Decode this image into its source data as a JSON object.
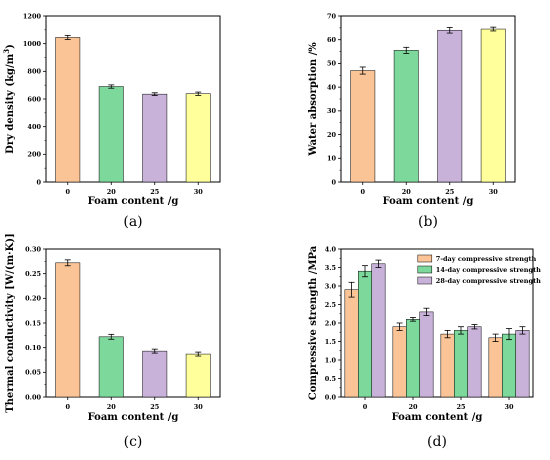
{
  "chart_data": [
    {
      "panel": "(a)",
      "type": "bar",
      "categories": [
        "0",
        "20",
        "25",
        "30"
      ],
      "values": [
        1045,
        690,
        635,
        638
      ],
      "errors": [
        15,
        12,
        10,
        12
      ],
      "colors": [
        "#FBC496",
        "#7DD89B",
        "#C9B2DA",
        "#FFFF9C"
      ],
      "xlabel": "Foam content /g",
      "ylabel_main": "Dry density  (kg/m",
      "ylabel_sup": "3",
      "ylabel_end": ")",
      "ylim": [
        0,
        1200
      ],
      "yticks": [
        "0",
        "200",
        "400",
        "600",
        "800",
        "1000",
        "1200"
      ]
    },
    {
      "panel": "(b)",
      "type": "bar",
      "categories": [
        "0",
        "20",
        "25",
        "30"
      ],
      "values": [
        47,
        55.5,
        64,
        64.5
      ],
      "errors": [
        1.5,
        1.3,
        1.2,
        0.8
      ],
      "colors": [
        "#FBC496",
        "#7DD89B",
        "#C9B2DA",
        "#FFFF9C"
      ],
      "xlabel": "Foam content /g",
      "ylabel": "Water absorption /%",
      "ylim": [
        0,
        70
      ],
      "yticks": [
        "0",
        "10",
        "20",
        "30",
        "40",
        "50",
        "60",
        "70"
      ]
    },
    {
      "panel": "(c)",
      "type": "bar",
      "categories": [
        "0",
        "20",
        "25",
        "30"
      ],
      "values": [
        0.272,
        0.122,
        0.093,
        0.087
      ],
      "errors": [
        0.006,
        0.005,
        0.004,
        0.004
      ],
      "colors": [
        "#FBC496",
        "#7DD89B",
        "#C9B2DA",
        "#FFFF9C"
      ],
      "xlabel": "Foam content /g",
      "ylabel": "Thermal conductivity [W/(m·K)]",
      "ylim": [
        0,
        0.3
      ],
      "yticks": [
        "0.00",
        "0.05",
        "0.10",
        "0.15",
        "0.20",
        "0.25",
        "0.30"
      ]
    },
    {
      "panel": "(d)",
      "type": "bar",
      "categories": [
        "0",
        "20",
        "25",
        "30"
      ],
      "series": [
        {
          "name": "7-day compressive strength",
          "values": [
            2.9,
            1.9,
            1.7,
            1.6
          ],
          "errors": [
            0.2,
            0.1,
            0.1,
            0.1
          ],
          "color": "#FBC496"
        },
        {
          "name": "14-day compressive strength",
          "values": [
            3.4,
            2.1,
            1.8,
            1.7
          ],
          "errors": [
            0.15,
            0.05,
            0.1,
            0.15
          ],
          "color": "#7DD89B"
        },
        {
          "name": "28-day compressive strength",
          "values": [
            3.6,
            2.3,
            1.9,
            1.8
          ],
          "errors": [
            0.1,
            0.1,
            0.06,
            0.1
          ],
          "color": "#C9B2DA"
        }
      ],
      "xlabel": "Foam content /g",
      "ylabel": "Compressive strength /MPa",
      "ylim": [
        0,
        4.0
      ],
      "yticks": [
        "0.0",
        "0.5",
        "1.0",
        "1.5",
        "2.0",
        "2.5",
        "3.0",
        "3.5",
        "4.0"
      ],
      "legend": "top-right"
    }
  ]
}
